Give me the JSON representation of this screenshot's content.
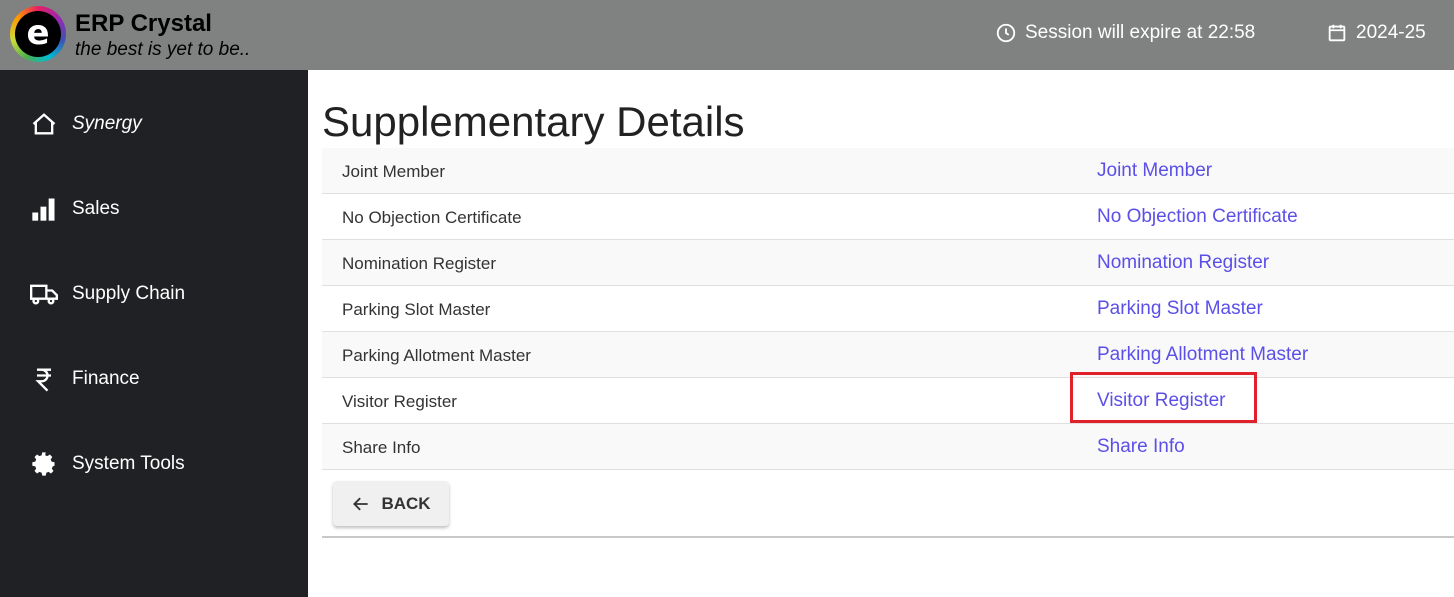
{
  "header": {
    "brand": "ERP Crystal",
    "tagline": "the best is yet to be..",
    "session": "Session will expire at 22:58",
    "year": "2024-25"
  },
  "sidebar": {
    "items": [
      {
        "label": "Synergy",
        "icon": "home-icon"
      },
      {
        "label": "Sales",
        "icon": "bar-chart-icon"
      },
      {
        "label": "Supply Chain",
        "icon": "truck-icon"
      },
      {
        "label": "Finance",
        "icon": "rupee-icon"
      },
      {
        "label": "System Tools",
        "icon": "gear-icon"
      }
    ]
  },
  "main": {
    "title": "Supplementary Details",
    "rows": [
      {
        "name": "Joint Member",
        "link": "Joint Member"
      },
      {
        "name": "No Objection Certificate",
        "link": "No Objection Certificate"
      },
      {
        "name": "Nomination Register",
        "link": "Nomination Register"
      },
      {
        "name": "Parking Slot Master",
        "link": "Parking Slot Master"
      },
      {
        "name": "Parking Allotment Master",
        "link": "Parking Allotment Master"
      },
      {
        "name": "Visitor Register",
        "link": "Visitor Register"
      },
      {
        "name": "Share Info",
        "link": "Share Info"
      }
    ],
    "back_label": "BACK"
  },
  "colors": {
    "link": "#5b4fe8",
    "highlight": "#e0202a",
    "header": "#7f8280",
    "sidebar": "#202124"
  }
}
